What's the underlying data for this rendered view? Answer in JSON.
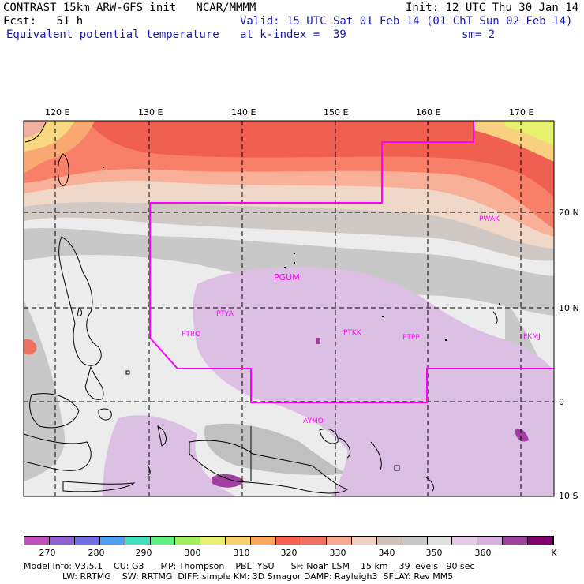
{
  "header": {
    "title_line": "CONTRAST 15km ARW-GFS init   NCAR/MMMM",
    "init": "Init: 12 UTC Thu 30 Jan 14",
    "fcst": "Fcst:   51 h",
    "valid": "Valid: 15 UTC Sat 01 Feb 14 (01 ChT Sun 02 Feb 14)",
    "field": "Equivalent potential temperature",
    "level": "at k-index =  39",
    "smooth": "sm= 2"
  },
  "map": {
    "lon_labels": [
      "120 E",
      "130 E",
      "140 E",
      "150 E",
      "160 E",
      "170 E"
    ],
    "lat_labels": [
      "20 N",
      "10 N",
      "0",
      "10 S"
    ],
    "stations": [
      "PWAK",
      "PGUM",
      "PTYA",
      "PTRO",
      "PTKK",
      "PTPP",
      "PKMJ",
      "AYMO"
    ],
    "boundary_color": "#ff00ff"
  },
  "colorbar": {
    "labels": [
      "270",
      "280",
      "290",
      "300",
      "310",
      "320",
      "330",
      "340",
      "350",
      "360",
      "K"
    ],
    "colors": [
      "#c050c0",
      "#9060d0",
      "#7070e0",
      "#50a0f0",
      "#40e0c0",
      "#60f080",
      "#a0f060",
      "#e8f070",
      "#f8d070",
      "#f8a860",
      "#f86050",
      "#f07060",
      "#f8a890",
      "#f0d0c0",
      "#d0c0b8",
      "#c8c8c8",
      "#e0e0e0",
      "#e8c8e8",
      "#d8b0e0",
      "#a040a0",
      "#800070"
    ]
  },
  "footer": {
    "line1": "Model Info: V3.5.1    CU: G3      MP: Thompson    PBL: YSU      SF: Noah LSM    15 km    39 levels   90 sec",
    "line2": "              LW: RRTMG    SW: RRTMG  DIFF: simple KM: 3D Smagor DAMP: Rayleigh3  SFLAY: Rev MM5"
  }
}
